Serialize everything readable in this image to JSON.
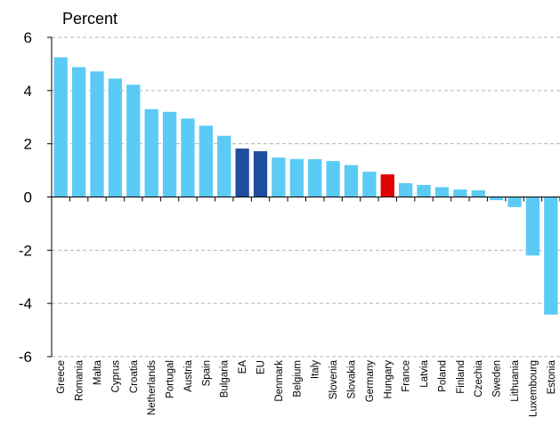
{
  "chart_data": {
    "type": "bar",
    "ylabel": "Percent",
    "ylim": [
      -6,
      6
    ],
    "yticks": [
      6,
      4,
      2,
      0,
      -2,
      -4,
      -6
    ],
    "grid": "horizontal dashed",
    "categories": [
      "Greece",
      "Romania",
      "Malta",
      "Cyprus",
      "Croatia",
      "Netherlands",
      "Portugal",
      "Austria",
      "Spain",
      "Bulgaria",
      "EA",
      "EU",
      "Denmark",
      "Belgium",
      "Italy",
      "Slovenia",
      "Slovakia",
      "Germany",
      "Hungary",
      "France",
      "Latvia",
      "Poland",
      "Finland",
      "Czechia",
      "Sweden",
      "Lithuania",
      "Luxembourg",
      "Estonia"
    ],
    "values": [
      5.25,
      4.88,
      4.72,
      4.45,
      4.22,
      3.3,
      3.2,
      2.95,
      2.68,
      2.3,
      1.82,
      1.72,
      1.48,
      1.43,
      1.42,
      1.35,
      1.2,
      0.95,
      0.85,
      0.52,
      0.45,
      0.37,
      0.28,
      0.25,
      -0.12,
      -0.38,
      -2.2,
      -4.42
    ],
    "colors": [
      "#5BCBF5",
      "#5BCBF5",
      "#5BCBF5",
      "#5BCBF5",
      "#5BCBF5",
      "#5BCBF5",
      "#5BCBF5",
      "#5BCBF5",
      "#5BCBF5",
      "#5BCBF5",
      "#1F4E9E",
      "#1F4E9E",
      "#5BCBF5",
      "#5BCBF5",
      "#5BCBF5",
      "#5BCBF5",
      "#5BCBF5",
      "#5BCBF5",
      "#E00000",
      "#5BCBF5",
      "#5BCBF5",
      "#5BCBF5",
      "#5BCBF5",
      "#5BCBF5",
      "#5BCBF5",
      "#5BCBF5",
      "#5BCBF5",
      "#5BCBF5"
    ]
  }
}
